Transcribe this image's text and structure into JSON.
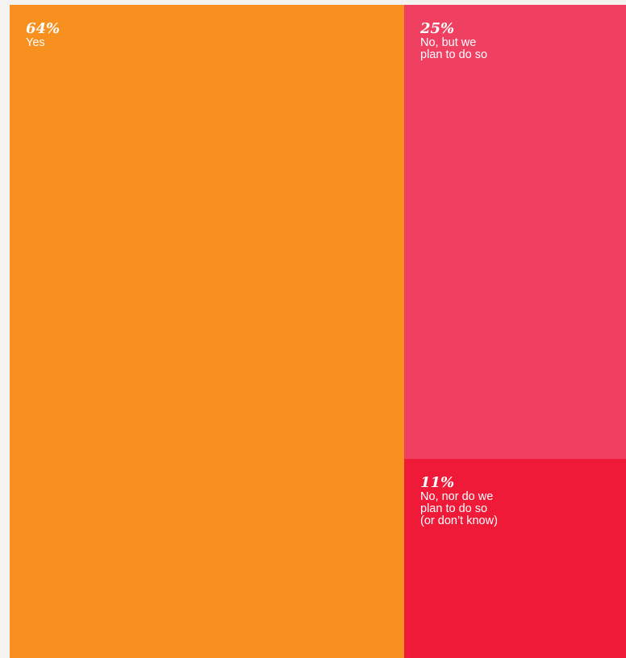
{
  "chart_data": {
    "type": "treemap",
    "title": "",
    "legend": "none",
    "grid": false,
    "items": [
      {
        "value": 64,
        "value_label": "64%",
        "label": "Yes",
        "color": "#f7901e"
      },
      {
        "value": 25,
        "value_label": "25%",
        "label": "No, but we\nplan to do so",
        "color": "#f04061"
      },
      {
        "value": 11,
        "value_label": "11%",
        "label": "No, nor do we\nplan to do so\n(or don’t know)",
        "color": "#ee1a38"
      }
    ]
  }
}
